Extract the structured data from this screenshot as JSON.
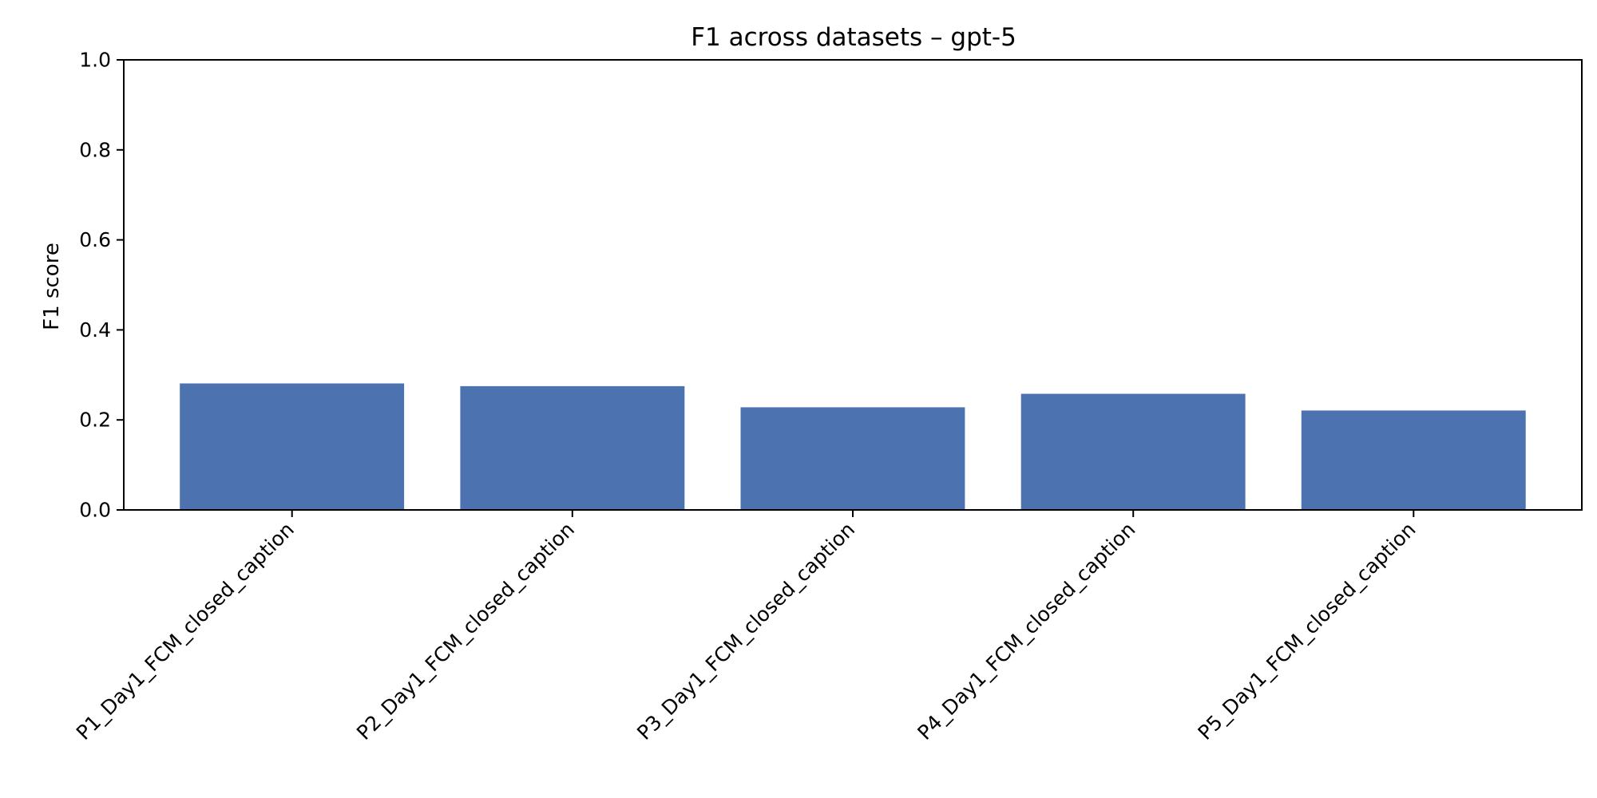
{
  "chart_data": {
    "type": "bar",
    "title": "F1 across datasets – gpt-5",
    "xlabel": "",
    "ylabel": "F1 score",
    "ylim": [
      0,
      1.0
    ],
    "yticks": [
      "0.0",
      "0.2",
      "0.4",
      "0.6",
      "0.8",
      "1.0"
    ],
    "categories": [
      "P1_Day1_FCM_closed_caption",
      "P2_Day1_FCM_closed_caption",
      "P3_Day1_FCM_closed_caption",
      "P4_Day1_FCM_closed_caption",
      "P5_Day1_FCM_closed_caption"
    ],
    "values": [
      0.281,
      0.275,
      0.228,
      0.258,
      0.221
    ],
    "bar_color": "#4c72b0",
    "grid": false,
    "legend": "none"
  }
}
